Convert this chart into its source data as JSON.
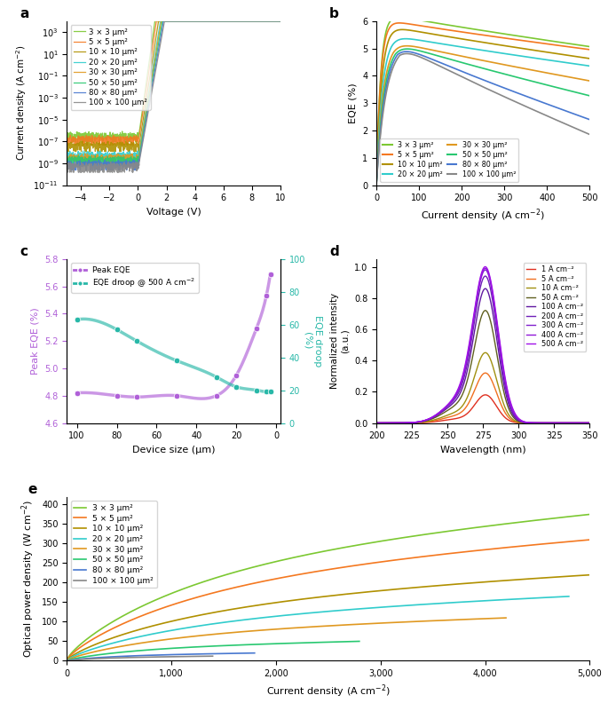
{
  "labels_8": [
    "3 × 3 μm²",
    "5 × 5 μm²",
    "10 × 10 μm²",
    "20 × 20 μm²",
    "30 × 30 μm²",
    "50 × 50 μm²",
    "80 × 80 μm²",
    "100 × 100 μm²"
  ],
  "colors_8": [
    "#7cc832",
    "#f47820",
    "#b09000",
    "#30cccc",
    "#e09820",
    "#28c870",
    "#4878d0",
    "#888888"
  ],
  "color_purple": "#b060d8",
  "color_teal": "#28b8a8",
  "current_labels_d": [
    "1 A cm⁻²",
    "5 A cm⁻²",
    "10 A cm⁻²",
    "50 A cm⁻²",
    "100 A cm⁻²",
    "200 A cm⁻²",
    "300 A cm⁻²",
    "400 A cm⁻²",
    "500 A cm⁻²"
  ],
  "colors_d": [
    "#e03020",
    "#f07020",
    "#a09010",
    "#606020",
    "#6018a0",
    "#7020b8",
    "#8020cc",
    "#9018d8",
    "#a010e8"
  ],
  "iv_noise_levels": [
    3e-07,
    1.5e-07,
    4e-08,
    5e-09,
    3e-09,
    2e-09,
    8e-10,
    5e-10
  ],
  "iv_ideality": [
    1.8,
    1.9,
    2.0,
    2.1,
    2.15,
    2.2,
    2.25,
    2.3
  ],
  "iv_sat_current": [
    1e-07,
    5e-08,
    1e-08,
    3e-09,
    2e-09,
    1e-09,
    5e-10,
    3e-10
  ],
  "eqe_peaks": [
    5.75,
    5.55,
    5.35,
    5.05,
    4.85,
    4.8,
    4.78,
    4.75
  ],
  "eqe_j_peak": [
    25,
    25,
    30,
    35,
    40,
    45,
    50,
    55
  ],
  "eqe_final_500": [
    4.65,
    4.55,
    4.25,
    4.0,
    3.5,
    3.0,
    2.2,
    1.7
  ],
  "device_sizes_c": [
    100,
    80,
    70,
    50,
    30,
    20,
    10,
    5,
    3
  ],
  "peak_eqe_c": [
    4.82,
    4.8,
    4.79,
    4.8,
    4.8,
    4.95,
    5.29,
    5.53,
    5.69
  ],
  "droop_c": [
    63,
    57,
    50,
    38,
    28,
    22,
    20,
    19,
    19
  ],
  "wavelength_peak_d": 277,
  "spectral_intensities_d": [
    0.18,
    0.32,
    0.45,
    0.72,
    0.86,
    0.94,
    0.98,
    0.99,
    1.0
  ],
  "opd_end_vals": [
    375,
    310,
    220,
    165,
    110,
    50,
    20,
    12
  ],
  "opd_j_max": [
    5000,
    5000,
    5000,
    4800,
    4200,
    2800,
    1800,
    1400
  ]
}
